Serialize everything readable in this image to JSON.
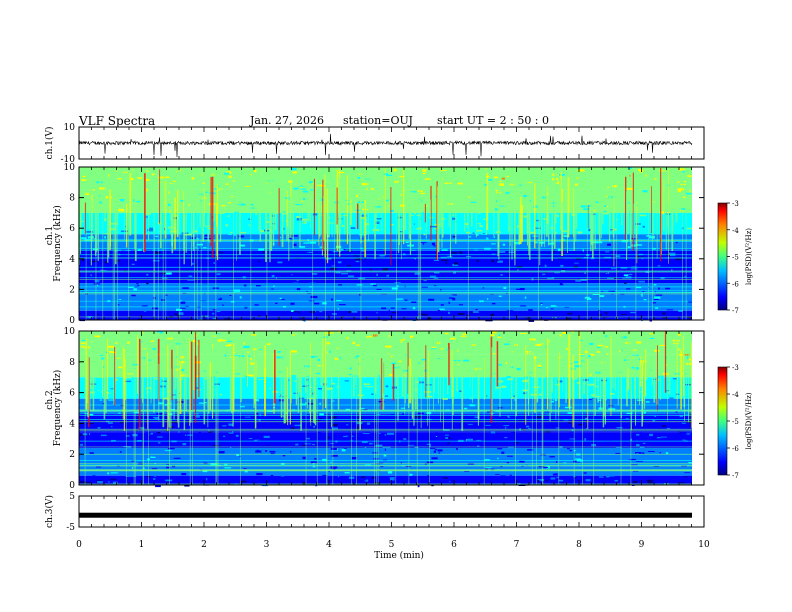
{
  "header": {
    "title": "VLF Spectra",
    "date": "Jan. 27, 2026",
    "station": "station=OUJ",
    "start": "start UT =  2 : 50 : 0"
  },
  "chart_data": [
    {
      "type": "line",
      "panel": "ch1-waveform",
      "ylabel": "ch.1(V)",
      "ylim": [
        -10,
        10
      ],
      "yticks": [
        "10",
        "-10"
      ],
      "baseline": 0,
      "description_series": "noisy waveform with sporadic negative spikes"
    },
    {
      "type": "heatmap",
      "panel": "ch1-spectrogram",
      "ylabel": "ch.1  Frequency (kHz)",
      "ylim": [
        0,
        10
      ],
      "yticks": [
        "0",
        "2",
        "4",
        "6",
        "8",
        "10"
      ],
      "colorbar": {
        "label": "log(PSD)(V²/Hz)",
        "ticks": [
          "-3",
          "-4",
          "-5",
          "-6",
          "-7"
        ],
        "range": [
          -7,
          -3
        ]
      }
    },
    {
      "type": "heatmap",
      "panel": "ch2-spectrogram",
      "ylabel": "ch.2  Frequency (kHz)",
      "ylim": [
        0,
        10
      ],
      "yticks": [
        "0",
        "2",
        "4",
        "6",
        "8",
        "10"
      ],
      "colorbar": {
        "label": "log(PSD)(V²/Hz)",
        "ticks": [
          "-3",
          "-4",
          "-5",
          "-6",
          "-7"
        ],
        "range": [
          -7,
          -3
        ]
      }
    },
    {
      "type": "line",
      "panel": "ch3-waveform",
      "ylabel": "ch.3(V)",
      "ylim": [
        -5,
        5
      ],
      "yticks": [
        "5",
        "-5"
      ],
      "baseline": -1.2
    }
  ],
  "xaxis": {
    "label": "Time (min)",
    "range": [
      0,
      10
    ],
    "ticks": [
      "0",
      "1",
      "2",
      "3",
      "4",
      "5",
      "6",
      "7",
      "8",
      "9",
      "10"
    ]
  },
  "colors": {
    "jet": [
      "#000080",
      "#0000ff",
      "#0080ff",
      "#00ffff",
      "#80ff80",
      "#ffff00",
      "#ff8000",
      "#ff0000",
      "#800000"
    ]
  }
}
